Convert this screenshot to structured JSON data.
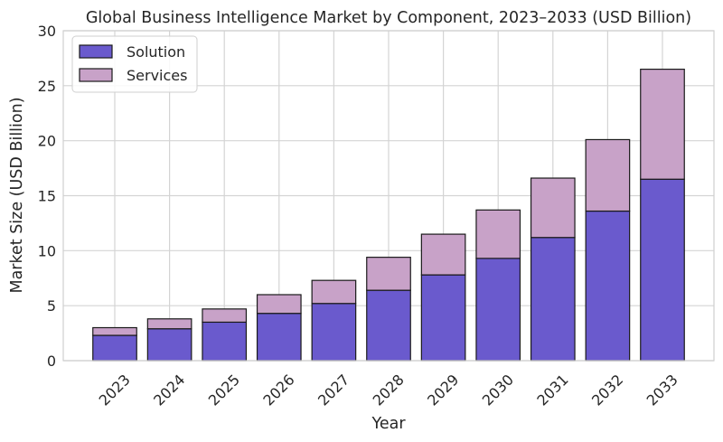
{
  "chart_data": {
    "type": "bar",
    "stacked": true,
    "title": "Global Business Intelligence Market by Component, 2023–2033 (USD Billion)",
    "xlabel": "Year",
    "ylabel": "Market Size (USD Billion)",
    "ylim": [
      0,
      30
    ],
    "yticks": [
      0,
      5,
      10,
      15,
      20,
      25,
      30
    ],
    "grid": true,
    "legend": "top-left",
    "categories": [
      "2023",
      "2024",
      "2025",
      "2026",
      "2027",
      "2028",
      "2029",
      "2030",
      "2031",
      "2032",
      "2033"
    ],
    "series": [
      {
        "name": "Solution",
        "color": "#6a5acd",
        "values": [
          2.3,
          2.9,
          3.5,
          4.3,
          5.2,
          6.4,
          7.8,
          9.3,
          11.2,
          13.6,
          16.5
        ]
      },
      {
        "name": "Services",
        "color": "#c8a2c8",
        "values": [
          0.7,
          0.9,
          1.2,
          1.7,
          2.1,
          3.0,
          3.7,
          4.4,
          5.4,
          6.5,
          10.0
        ]
      }
    ]
  }
}
